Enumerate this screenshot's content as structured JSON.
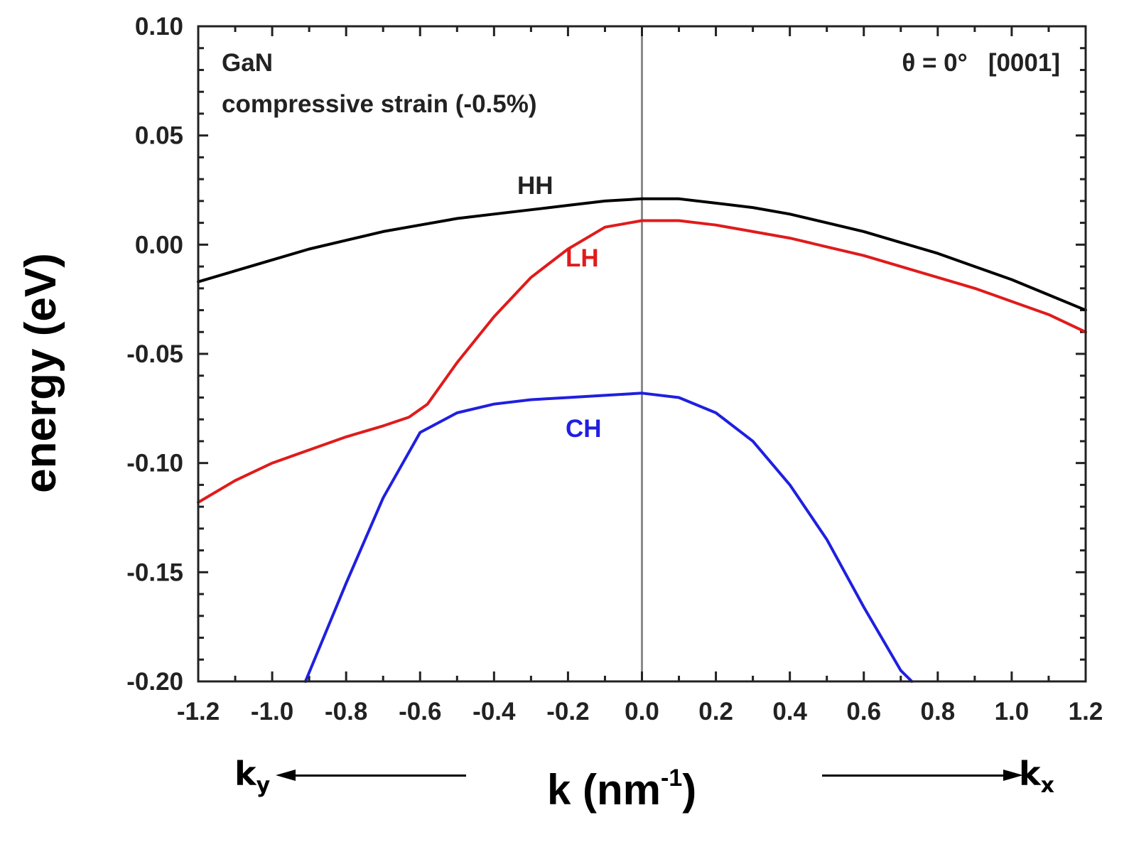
{
  "chart_data": {
    "type": "line",
    "xlabel_main": "k (nm",
    "xlabel_exp": "-1",
    "xlabel_close": ")",
    "ylabel": "energy (eV)",
    "xlim": [
      -1.2,
      1.2
    ],
    "ylim": [
      -0.2,
      0.1
    ],
    "xticks": [
      "-1.2",
      "-1.0",
      "-0.8",
      "-0.6",
      "-0.4",
      "-0.2",
      "0.0",
      "0.2",
      "0.4",
      "0.6",
      "0.8",
      "1.0",
      "1.2"
    ],
    "yticks": [
      "0.10",
      "0.05",
      "0.00",
      "-0.05",
      "-0.10",
      "-0.15",
      "-0.20"
    ],
    "annotations": {
      "material": "GaN",
      "strain": "compressive strain (-0.5%)",
      "angle": "θ = 0°   [0001]"
    },
    "direction_labels": {
      "left": "k",
      "left_sub": "y",
      "right": "k",
      "right_sub": "x"
    },
    "series": [
      {
        "name": "HH",
        "color": "#000000",
        "x": [
          -1.2,
          -1.1,
          -1.0,
          -0.9,
          -0.8,
          -0.7,
          -0.6,
          -0.5,
          -0.4,
          -0.3,
          -0.2,
          -0.1,
          0.0,
          0.1,
          0.2,
          0.3,
          0.4,
          0.5,
          0.6,
          0.7,
          0.8,
          0.9,
          1.0,
          1.1,
          1.2
        ],
        "y": [
          -0.017,
          -0.012,
          -0.007,
          -0.002,
          0.002,
          0.006,
          0.009,
          0.012,
          0.014,
          0.016,
          0.018,
          0.02,
          0.021,
          0.021,
          0.019,
          0.017,
          0.014,
          0.01,
          0.006,
          0.001,
          -0.004,
          -0.01,
          -0.016,
          -0.023,
          -0.03
        ]
      },
      {
        "name": "LH",
        "color": "#e01b1b",
        "x": [
          -1.2,
          -1.1,
          -1.0,
          -0.9,
          -0.8,
          -0.7,
          -0.63,
          -0.58,
          -0.5,
          -0.4,
          -0.3,
          -0.2,
          -0.1,
          0.0,
          0.1,
          0.2,
          0.3,
          0.4,
          0.5,
          0.6,
          0.7,
          0.8,
          0.9,
          1.0,
          1.1,
          1.2
        ],
        "y": [
          -0.118,
          -0.108,
          -0.1,
          -0.094,
          -0.088,
          -0.083,
          -0.079,
          -0.073,
          -0.054,
          -0.033,
          -0.015,
          -0.002,
          0.008,
          0.011,
          0.011,
          0.009,
          0.006,
          0.003,
          -0.001,
          -0.005,
          -0.01,
          -0.015,
          -0.02,
          -0.026,
          -0.032,
          -0.04
        ]
      },
      {
        "name": "CH",
        "color": "#1f1fe0",
        "x": [
          -0.91,
          -0.8,
          -0.7,
          -0.6,
          -0.5,
          -0.4,
          -0.3,
          -0.2,
          -0.1,
          0.0,
          0.1,
          0.2,
          0.3,
          0.4,
          0.5,
          0.6,
          0.7,
          0.73
        ],
        "y": [
          -0.2,
          -0.155,
          -0.116,
          -0.086,
          -0.077,
          -0.073,
          -0.071,
          -0.07,
          -0.069,
          -0.068,
          -0.07,
          -0.077,
          -0.09,
          -0.11,
          -0.135,
          -0.166,
          -0.195,
          -0.2
        ]
      }
    ]
  }
}
